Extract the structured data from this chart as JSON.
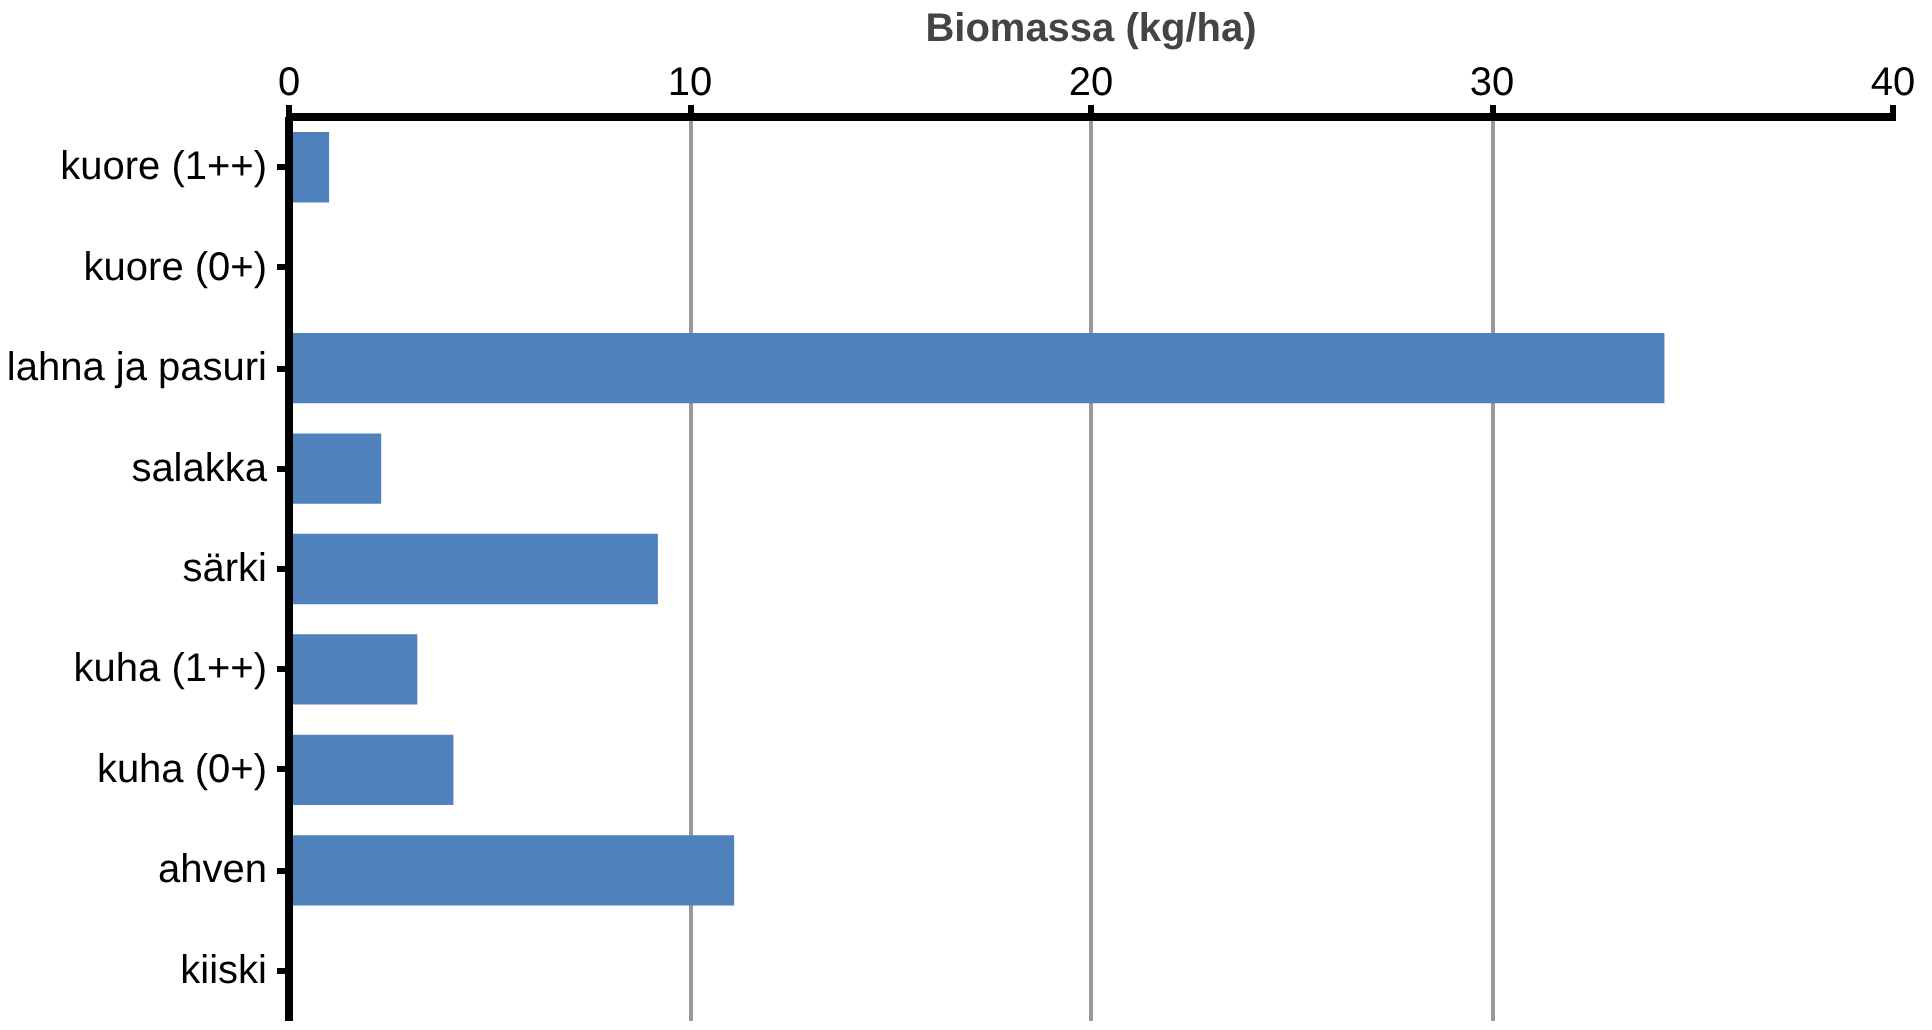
{
  "chart_data": {
    "type": "bar",
    "orientation": "horizontal",
    "xlabel": "Biomassa (kg/ha)",
    "categories": [
      "kuore (1++)",
      "kuore (0+)",
      "lahna ja pasuri",
      "salakka",
      "särki",
      "kuha (1++)",
      "kuha (0+)",
      "ahven",
      "kiiski"
    ],
    "values": [
      1.0,
      0,
      34.3,
      2.3,
      9.2,
      3.2,
      4.1,
      11.1,
      0
    ],
    "color": "#4f81bd",
    "xlim": [
      0,
      40
    ],
    "xticks": [
      0,
      10,
      20,
      30,
      40
    ],
    "grid": "x"
  }
}
